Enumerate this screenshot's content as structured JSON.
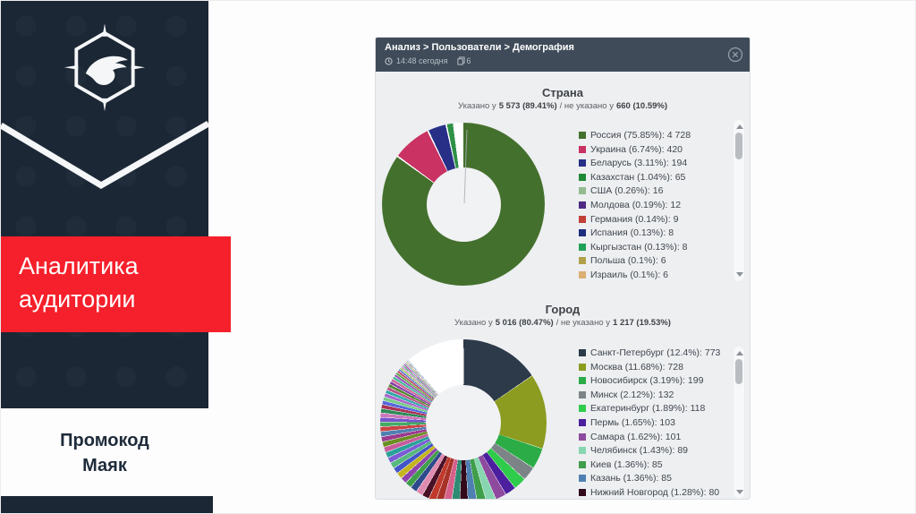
{
  "slide": {
    "title_line1": "Аналитика",
    "title_line2": "аудитории",
    "promo_line1": "Промокод",
    "promo_line2": "Маяк",
    "colors": {
      "panel_navy": "#1b2734",
      "accent_red": "#f5202b",
      "card_header": "#3f4b59",
      "card_body": "#edeff1"
    }
  },
  "card": {
    "header": {
      "breadcrumb": "Анализ > Пользователи > Демография",
      "time": "14:48 сегодня",
      "pages_count": "6"
    }
  },
  "chart_data": [
    {
      "type": "pie",
      "title": "Страна",
      "subtitle": {
        "pre": "Указано у",
        "bold1": "5 573 (89.41%)",
        "mid": "/ не указано у",
        "bold2": "660 (10.59%)"
      },
      "legend_position": "right",
      "legend": [
        {
          "label": "Россия",
          "pct": "75.85%",
          "value": "4 728",
          "color": "#44702d"
        },
        {
          "label": "Украина",
          "pct": "6.74%",
          "value": "420",
          "color": "#c93263"
        },
        {
          "label": "Беларусь",
          "pct": "3.11%",
          "value": "194",
          "color": "#272f87"
        },
        {
          "label": "Казахстан",
          "pct": "1.04%",
          "value": "65",
          "color": "#1f8a35"
        },
        {
          "label": "США",
          "pct": "0.26%",
          "value": "16",
          "color": "#94bb8f"
        },
        {
          "label": "Молдова",
          "pct": "0.19%",
          "value": "12",
          "color": "#4e2a86"
        },
        {
          "label": "Германия",
          "pct": "0.14%",
          "value": "9",
          "color": "#c04038"
        },
        {
          "label": "Испания",
          "pct": "0.13%",
          "value": "8",
          "color": "#1c2d7e"
        },
        {
          "label": "Кыргызстан",
          "pct": "0.13%",
          "value": "8",
          "color": "#21a156"
        },
        {
          "label": "Польша",
          "pct": "0.1%",
          "value": "6",
          "color": "#b1a04a"
        },
        {
          "label": "Израиль",
          "pct": "0.1%",
          "value": "6",
          "color": "#dcae72"
        }
      ],
      "donut": {
        "gap": 0.3,
        "slices": [
          {
            "p": 84.84,
            "c": "#44702d"
          },
          {
            "p": 7.54,
            "c": "#c93263"
          },
          {
            "p": 3.48,
            "c": "#272f87"
          },
          {
            "p": 1.17,
            "c": "#2e9147"
          }
        ]
      }
    },
    {
      "type": "pie",
      "title": "Город",
      "subtitle": {
        "pre": "Указано у",
        "bold1": "5 016 (80.47%)",
        "mid": "/ не указано у",
        "bold2": "1 217 (19.53%)"
      },
      "legend_position": "right",
      "legend": [
        {
          "label": "Санкт-Петербург",
          "pct": "12.4%",
          "value": "773",
          "color": "#2c3a4a"
        },
        {
          "label": "Москва",
          "pct": "11.68%",
          "value": "728",
          "color": "#8c9c20"
        },
        {
          "label": "Новосибирск",
          "pct": "3.19%",
          "value": "199",
          "color": "#2bac46"
        },
        {
          "label": "Минск",
          "pct": "2.12%",
          "value": "132",
          "color": "#7d8488"
        },
        {
          "label": "Екатеринбург",
          "pct": "1.89%",
          "value": "118",
          "color": "#2ecc4a"
        },
        {
          "label": "Пермь",
          "pct": "1.65%",
          "value": "103",
          "color": "#4b1f9e"
        },
        {
          "label": "Самара",
          "pct": "1.62%",
          "value": "101",
          "color": "#8e4a9f"
        },
        {
          "label": "Челябинск",
          "pct": "1.43%",
          "value": "89",
          "color": "#87d6b0"
        },
        {
          "label": "Киев",
          "pct": "1.36%",
          "value": "85",
          "color": "#3f9e4a"
        },
        {
          "label": "Казань",
          "pct": "1.36%",
          "value": "85",
          "color": "#4f80b2"
        },
        {
          "label": "Нижний Новгород",
          "pct": "1.28%",
          "value": "80",
          "color": "#330a1c"
        }
      ],
      "donut": {
        "gap": 0.1,
        "slices": [
          {
            "p": 15.41,
            "c": "#2c3a4a"
          },
          {
            "p": 14.51,
            "c": "#8c9c20"
          },
          {
            "p": 3.97,
            "c": "#2bac46"
          },
          {
            "p": 2.63,
            "c": "#7d8488"
          },
          {
            "p": 2.35,
            "c": "#2ecc4a"
          },
          {
            "p": 2.05,
            "c": "#4b1f9e"
          },
          {
            "p": 2.01,
            "c": "#8e4a9f"
          },
          {
            "p": 1.77,
            "c": "#87d6b0"
          },
          {
            "p": 1.69,
            "c": "#3f9e4a"
          },
          {
            "p": 1.69,
            "c": "#4f80b2"
          },
          {
            "p": 1.59,
            "c": "#330a1c"
          },
          {
            "p": 1.55,
            "c": "#2e8b74"
          },
          {
            "p": 1.45,
            "c": "#d6608a"
          },
          {
            "p": 1.38,
            "c": "#a83228"
          },
          {
            "p": 1.32,
            "c": "#c0392b"
          },
          {
            "p": 1.28,
            "c": "#4a1025"
          },
          {
            "p": 1.25,
            "c": "#e08bb0"
          },
          {
            "p": 1.22,
            "c": "#2f4a8c"
          },
          {
            "p": 1.18,
            "c": "#3f9e4a"
          },
          {
            "p": 1.15,
            "c": "#8e44ad"
          },
          {
            "p": 1.12,
            "c": "#c4b41e"
          },
          {
            "p": 1.08,
            "c": "#4455c8"
          },
          {
            "p": 1.05,
            "c": "#56b87c"
          },
          {
            "p": 1.02,
            "c": "#7c5cd6"
          },
          {
            "p": 1.0,
            "c": "#2aa198"
          },
          {
            "p": 0.97,
            "c": "#c75b9b"
          },
          {
            "p": 0.94,
            "c": "#6b8e23"
          },
          {
            "p": 0.91,
            "c": "#9b3a8e"
          },
          {
            "p": 0.88,
            "c": "#4f80b2"
          },
          {
            "p": 0.85,
            "c": "#cc4444"
          },
          {
            "p": 0.82,
            "c": "#44aa66"
          },
          {
            "p": 0.79,
            "c": "#7755cc"
          },
          {
            "p": 0.76,
            "c": "#cc77bb"
          },
          {
            "p": 0.73,
            "c": "#2e8b57"
          },
          {
            "p": 0.7,
            "c": "#aa3355"
          },
          {
            "p": 0.67,
            "c": "#5566dd"
          },
          {
            "p": 0.64,
            "c": "#77cc88"
          },
          {
            "p": 0.61,
            "c": "#aa66cc"
          },
          {
            "p": 0.58,
            "c": "#33aaaa"
          },
          {
            "p": 0.55,
            "c": "#bb5588"
          },
          {
            "p": 0.52,
            "c": "#558833"
          },
          {
            "p": 0.49,
            "c": "#8844aa"
          },
          {
            "p": 0.46,
            "c": "#cc6699"
          },
          {
            "p": 0.43,
            "c": "#44bb99"
          },
          {
            "p": 0.4,
            "c": "#9955bb"
          },
          {
            "p": 0.37,
            "c": "#66aa44"
          },
          {
            "p": 0.34,
            "c": "#bb4466"
          },
          {
            "p": 0.31,
            "c": "#6677cc"
          },
          {
            "p": 0.28,
            "c": "#99cc66"
          },
          {
            "p": 0.25,
            "c": "#cc88cc"
          },
          {
            "p": 0.22,
            "c": "#55aa88"
          },
          {
            "p": 0.19,
            "c": "#aa4499"
          },
          {
            "p": 0.16,
            "c": "#7788bb"
          },
          {
            "p": 0.13,
            "c": "#99bb55"
          },
          {
            "p": 0.1,
            "c": "#bb66aa"
          },
          {
            "p": 0.08,
            "c": "#66bbaa"
          },
          {
            "p": 0.06,
            "c": "#8899cc"
          }
        ]
      }
    }
  ]
}
